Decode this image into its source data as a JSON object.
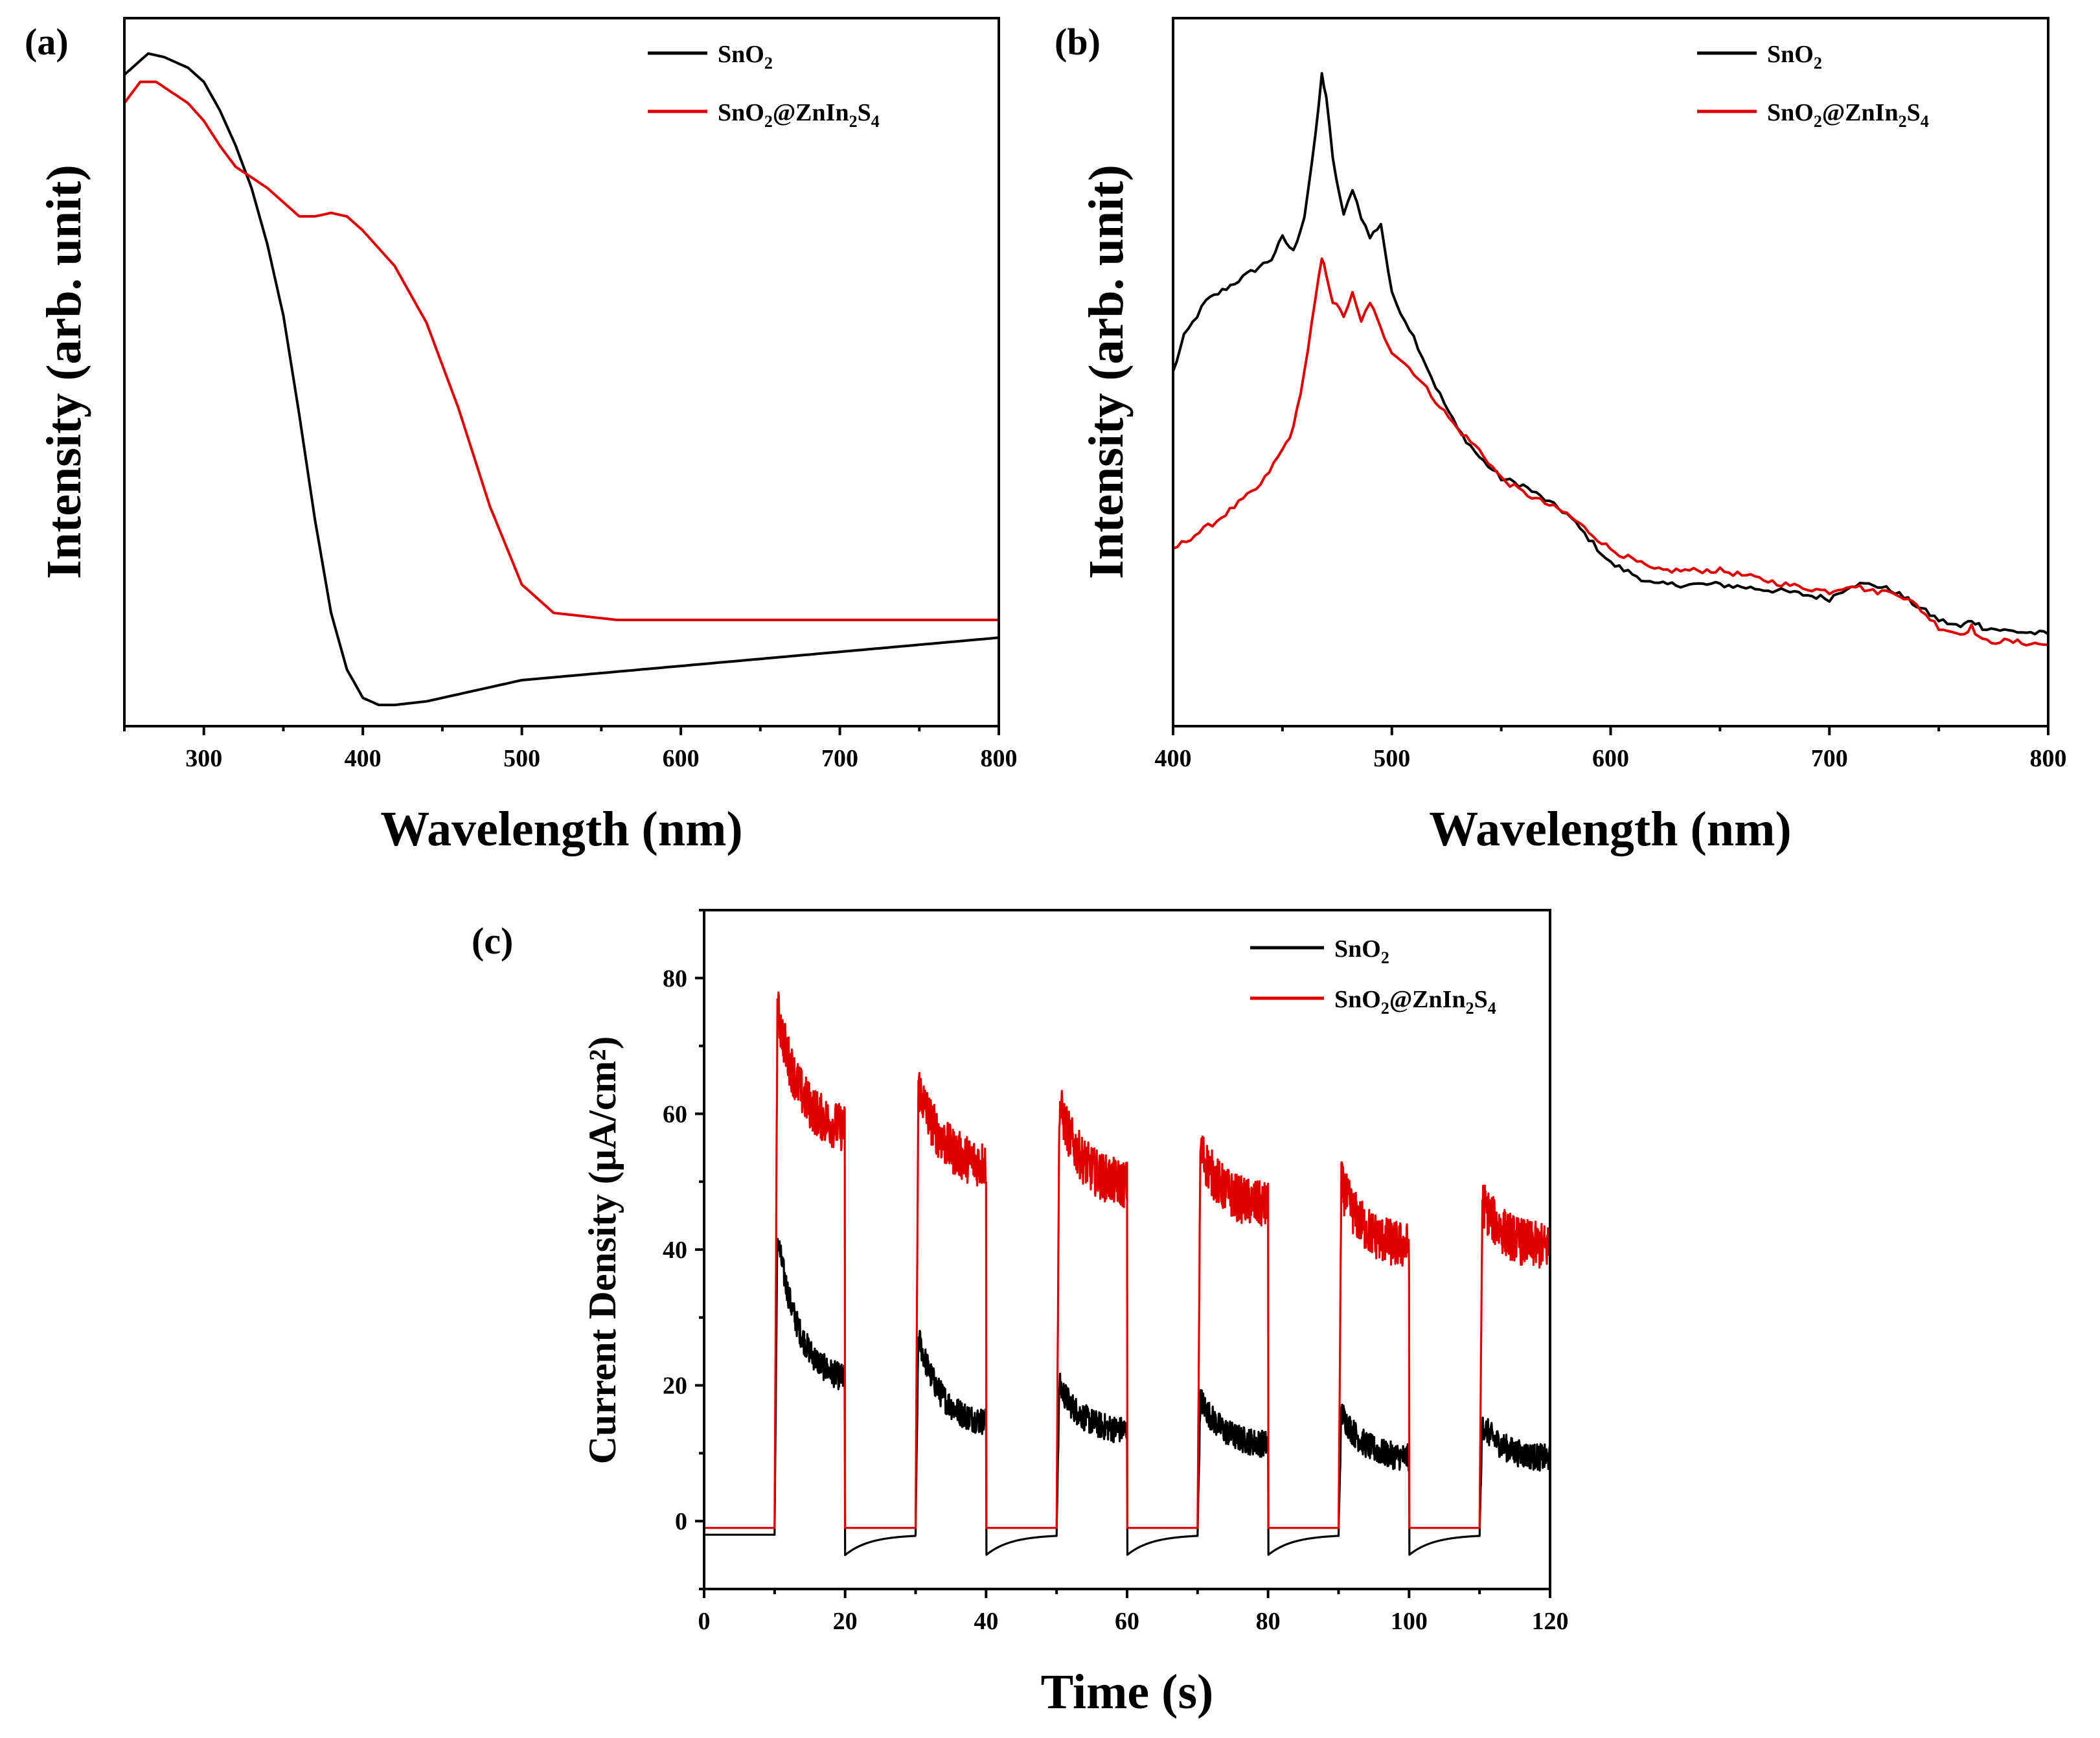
{
  "chart_data": [
    {
      "panel": "(a)",
      "type": "line",
      "title": "",
      "xlabel": "Wavelength (nm)",
      "ylabel": "Intensity (arb. unit)",
      "xlim": [
        250,
        800
      ],
      "ylim": [
        0,
        1
      ],
      "xticks": [
        300,
        400,
        500,
        600,
        700,
        800
      ],
      "yticks_visible": false,
      "legend_position": "top-right",
      "series": [
        {
          "name": "SnO2",
          "color": "#000000",
          "x": [
            250,
            265,
            275,
            290,
            300,
            310,
            320,
            330,
            340,
            350,
            360,
            370,
            380,
            390,
            400,
            410,
            420,
            440,
            470,
            500,
            550,
            600,
            650,
            700,
            750,
            800
          ],
          "y": [
            0.92,
            0.95,
            0.945,
            0.93,
            0.91,
            0.87,
            0.82,
            0.76,
            0.68,
            0.58,
            0.44,
            0.29,
            0.16,
            0.08,
            0.04,
            0.03,
            0.03,
            0.035,
            0.05,
            0.065,
            0.075,
            0.085,
            0.095,
            0.105,
            0.115,
            0.125
          ]
        },
        {
          "name": "SnO2@ZnIn2S4",
          "color": "#e00000",
          "x": [
            250,
            260,
            270,
            280,
            290,
            300,
            310,
            320,
            340,
            360,
            370,
            380,
            390,
            400,
            420,
            440,
            460,
            480,
            500,
            520,
            540,
            560,
            600,
            700,
            800
          ],
          "y": [
            0.88,
            0.91,
            0.91,
            0.895,
            0.88,
            0.855,
            0.82,
            0.79,
            0.76,
            0.72,
            0.72,
            0.725,
            0.72,
            0.7,
            0.65,
            0.57,
            0.45,
            0.31,
            0.2,
            0.16,
            0.155,
            0.15,
            0.15,
            0.15,
            0.15
          ]
        }
      ]
    },
    {
      "panel": "(b)",
      "type": "line",
      "title": "",
      "xlabel": "Wavelength (nm)",
      "ylabel": "Intensity (arb. unit)",
      "xlim": [
        400,
        800
      ],
      "ylim": [
        0,
        1
      ],
      "xticks": [
        400,
        500,
        600,
        700,
        800
      ],
      "yticks_visible": false,
      "legend_position": "top-right",
      "series": [
        {
          "name": "SnO2",
          "color": "#000000",
          "x": [
            400,
            405,
            415,
            430,
            445,
            450,
            455,
            460,
            465,
            468,
            470,
            473,
            478,
            482,
            486,
            490,
            495,
            500,
            510,
            520,
            530,
            540,
            550,
            560,
            580,
            600,
            620,
            650,
            680,
            700,
            710,
            720,
            730,
            740,
            750,
            760,
            765,
            770,
            780,
            800
          ],
          "y": [
            0.5,
            0.55,
            0.6,
            0.63,
            0.66,
            0.69,
            0.67,
            0.72,
            0.83,
            0.92,
            0.89,
            0.8,
            0.72,
            0.76,
            0.72,
            0.69,
            0.71,
            0.61,
            0.55,
            0.48,
            0.42,
            0.38,
            0.35,
            0.34,
            0.3,
            0.23,
            0.2,
            0.2,
            0.19,
            0.18,
            0.2,
            0.2,
            0.19,
            0.17,
            0.15,
            0.14,
            0.15,
            0.14,
            0.135,
            0.13
          ]
        },
        {
          "name": "SnO2@ZnIn2S4",
          "color": "#e00000",
          "x": [
            400,
            420,
            440,
            450,
            455,
            460,
            465,
            468,
            470,
            473,
            478,
            482,
            486,
            490,
            495,
            500,
            510,
            520,
            530,
            540,
            550,
            560,
            580,
            600,
            620,
            650,
            680,
            700,
            710,
            720,
            730,
            740,
            750,
            760,
            765,
            770,
            780,
            800
          ],
          "y": [
            0.25,
            0.29,
            0.34,
            0.39,
            0.42,
            0.5,
            0.6,
            0.66,
            0.64,
            0.6,
            0.58,
            0.61,
            0.57,
            0.6,
            0.56,
            0.53,
            0.5,
            0.46,
            0.42,
            0.39,
            0.35,
            0.33,
            0.3,
            0.25,
            0.22,
            0.22,
            0.2,
            0.19,
            0.2,
            0.19,
            0.19,
            0.17,
            0.14,
            0.13,
            0.14,
            0.12,
            0.12,
            0.115
          ]
        }
      ]
    },
    {
      "panel": "(c)",
      "type": "line",
      "title": "",
      "xlabel": "Time (s)",
      "ylabel": "Current Density (μA/cm²)",
      "xlim": [
        0,
        120
      ],
      "ylim": [
        -10,
        90
      ],
      "xticks": [
        0,
        20,
        40,
        60,
        80,
        100,
        120
      ],
      "yticks": [
        0,
        20,
        40,
        60,
        80
      ],
      "legend_position": "top-right",
      "light_cycles": [
        {
          "on": 10,
          "off": 20
        },
        {
          "on": 30,
          "off": 40
        },
        {
          "on": 50,
          "off": 60
        },
        {
          "on": 70,
          "off": 80
        },
        {
          "on": 90,
          "off": 100
        },
        {
          "on": 110,
          "off": 120
        }
      ],
      "series": [
        {
          "name": "SnO2",
          "color": "#000000",
          "dark_current": -2,
          "peak_values": [
            45,
            29,
            21,
            19,
            17,
            15
          ],
          "end_values": [
            20,
            14,
            13,
            11,
            9,
            9
          ],
          "undershoot": -5
        },
        {
          "name": "SnO2@ZnIn2S4",
          "color": "#e00000",
          "dark_current": -1,
          "peak_values": [
            78,
            66,
            63,
            56,
            51,
            48
          ],
          "end_values": [
            57,
            52,
            49,
            46,
            40,
            40
          ]
        }
      ]
    }
  ]
}
